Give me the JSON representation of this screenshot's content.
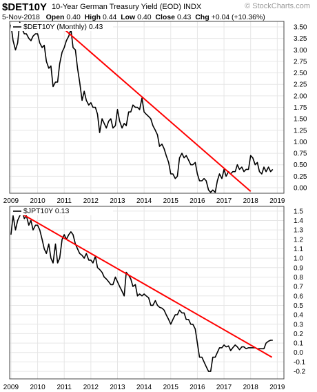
{
  "header": {
    "symbol": "$DET10Y",
    "title": "10-Year German Treasury Yield (EOD)",
    "exchange": "INDX",
    "watermark": "© StockCharts.com",
    "date": "5-Nov-2018",
    "open_label": "Open",
    "open": "0.40",
    "high_label": "High",
    "high": "0.44",
    "low_label": "Low",
    "low": "0.40",
    "close_label": "Close",
    "close": "0.43",
    "chg_label": "Chg",
    "chg": "+0.04 (+10.36%)"
  },
  "chart_data": [
    {
      "type": "line",
      "legend": "$DET10Y (Monthly) 0.43",
      "x_tick_labels": [
        "2009",
        "2010",
        "2011",
        "2012",
        "2013",
        "2014",
        "2015",
        "2016",
        "2017",
        "2018",
        "2019"
      ],
      "y_tick_labels": [
        "3.50",
        "3.25",
        "3.00",
        "2.75",
        "2.50",
        "2.25",
        "2.00",
        "1.75",
        "1.50",
        "1.25",
        "1.00",
        "0.75",
        "0.50",
        "0.25",
        "0.00"
      ],
      "ylim": [
        -0.12,
        3.62
      ],
      "xlim": [
        2008.95,
        2019.25
      ],
      "grid": true,
      "series": [
        {
          "color": "#000000",
          "x": [
            2009.0,
            2009.08,
            2009.17,
            2009.25,
            2009.33,
            2009.42,
            2009.5,
            2009.58,
            2009.67,
            2009.75,
            2009.83,
            2009.92,
            2010.0,
            2010.08,
            2010.17,
            2010.25,
            2010.33,
            2010.42,
            2010.5,
            2010.58,
            2010.67,
            2010.75,
            2010.83,
            2010.92,
            2011.0,
            2011.08,
            2011.17,
            2011.25,
            2011.33,
            2011.42,
            2011.5,
            2011.58,
            2011.67,
            2011.75,
            2011.83,
            2011.92,
            2012.0,
            2012.08,
            2012.17,
            2012.25,
            2012.33,
            2012.42,
            2012.5,
            2012.58,
            2012.67,
            2012.75,
            2012.83,
            2012.92,
            2013.0,
            2013.08,
            2013.17,
            2013.25,
            2013.33,
            2013.42,
            2013.5,
            2013.58,
            2013.67,
            2013.75,
            2013.83,
            2013.92,
            2014.0,
            2014.08,
            2014.17,
            2014.25,
            2014.33,
            2014.42,
            2014.5,
            2014.58,
            2014.67,
            2014.75,
            2014.83,
            2014.92,
            2015.0,
            2015.08,
            2015.17,
            2015.25,
            2015.33,
            2015.42,
            2015.5,
            2015.58,
            2015.67,
            2015.75,
            2015.83,
            2015.92,
            2016.0,
            2016.08,
            2016.17,
            2016.25,
            2016.33,
            2016.42,
            2016.5,
            2016.58,
            2016.67,
            2016.75,
            2016.83,
            2016.92,
            2017.0,
            2017.08,
            2017.17,
            2017.25,
            2017.33,
            2017.42,
            2017.5,
            2017.58,
            2017.67,
            2017.75,
            2017.83,
            2017.92,
            2018.0,
            2018.08,
            2018.17,
            2018.25,
            2018.33,
            2018.42,
            2018.5,
            2018.58,
            2018.67,
            2018.75,
            2018.83
          ],
          "values": [
            3.55,
            3.2,
            3.0,
            3.15,
            3.6,
            3.45,
            3.35,
            3.35,
            3.25,
            3.2,
            3.3,
            3.35,
            3.35,
            3.15,
            3.05,
            3.1,
            2.75,
            2.6,
            2.65,
            2.2,
            2.3,
            2.3,
            2.7,
            2.95,
            3.05,
            3.2,
            3.3,
            3.45,
            3.05,
            3.0,
            2.6,
            2.3,
            1.9,
            2.1,
            1.9,
            1.8,
            1.85,
            1.75,
            1.75,
            1.6,
            1.2,
            1.5,
            1.4,
            1.3,
            1.45,
            1.5,
            1.3,
            1.35,
            1.7,
            1.45,
            1.3,
            1.4,
            1.35,
            1.65,
            1.65,
            1.8,
            1.75,
            1.75,
            1.7,
            1.95,
            1.65,
            1.6,
            1.55,
            1.5,
            1.35,
            1.25,
            1.15,
            0.9,
            0.95,
            0.85,
            0.7,
            0.55,
            0.3,
            0.3,
            0.2,
            0.25,
            0.65,
            0.75,
            0.65,
            0.7,
            0.6,
            0.5,
            0.5,
            0.55,
            0.3,
            0.15,
            0.15,
            0.2,
            0.15,
            -0.05,
            -0.1,
            -0.05,
            -0.1,
            0.15,
            0.3,
            0.2,
            0.4,
            0.25,
            0.35,
            0.3,
            0.35,
            0.35,
            0.5,
            0.4,
            0.45,
            0.35,
            0.4,
            0.4,
            0.7,
            0.65,
            0.5,
            0.55,
            0.35,
            0.3,
            0.45,
            0.35,
            0.45,
            0.35,
            0.4
          ]
        },
        {
          "color": "#ff0000",
          "x": [
            2010.9,
            2018.0
          ],
          "values": [
            3.5,
            -0.08
          ]
        }
      ]
    },
    {
      "type": "line",
      "legend": "$JPT10Y 0.13",
      "x_tick_labels": [
        "2009",
        "2010",
        "2011",
        "2012",
        "2013",
        "2014",
        "2015",
        "2016",
        "2017",
        "2018",
        "2019"
      ],
      "y_tick_labels": [
        "1.5",
        "1.4",
        "1.3",
        "1.2",
        "1.1",
        "1.0",
        "0.9",
        "0.8",
        "0.7",
        "0.6",
        "0.5",
        "0.4",
        "0.3",
        "0.2",
        "0.1",
        "0.0",
        "-0.1",
        "-0.2"
      ],
      "ylim": [
        -0.28,
        1.55
      ],
      "xlim": [
        2008.95,
        2019.25
      ],
      "grid": true,
      "series": [
        {
          "color": "#000000",
          "x": [
            2009.0,
            2009.08,
            2009.17,
            2009.25,
            2009.33,
            2009.42,
            2009.5,
            2009.58,
            2009.67,
            2009.75,
            2009.83,
            2009.92,
            2010.0,
            2010.08,
            2010.17,
            2010.25,
            2010.33,
            2010.42,
            2010.5,
            2010.58,
            2010.67,
            2010.75,
            2010.83,
            2010.92,
            2011.0,
            2011.08,
            2011.17,
            2011.25,
            2011.33,
            2011.42,
            2011.5,
            2011.58,
            2011.67,
            2011.75,
            2011.83,
            2011.92,
            2012.0,
            2012.08,
            2012.17,
            2012.25,
            2012.33,
            2012.42,
            2012.5,
            2012.58,
            2012.67,
            2012.75,
            2012.83,
            2012.92,
            2013.0,
            2013.08,
            2013.17,
            2013.25,
            2013.33,
            2013.42,
            2013.5,
            2013.58,
            2013.67,
            2013.75,
            2013.83,
            2013.92,
            2014.0,
            2014.08,
            2014.17,
            2014.25,
            2014.33,
            2014.42,
            2014.5,
            2014.58,
            2014.67,
            2014.75,
            2014.83,
            2014.92,
            2015.0,
            2015.08,
            2015.17,
            2015.25,
            2015.33,
            2015.42,
            2015.5,
            2015.58,
            2015.67,
            2015.75,
            2015.83,
            2015.92,
            2016.0,
            2016.08,
            2016.17,
            2016.25,
            2016.33,
            2016.42,
            2016.5,
            2016.58,
            2016.67,
            2016.75,
            2016.83,
            2016.92,
            2017.0,
            2017.08,
            2017.17,
            2017.25,
            2017.33,
            2017.42,
            2017.5,
            2017.58,
            2017.67,
            2017.75,
            2017.83,
            2017.92,
            2018.0,
            2018.08,
            2018.17,
            2018.25,
            2018.33,
            2018.42,
            2018.5,
            2018.58,
            2018.67,
            2018.75,
            2018.83
          ],
          "values": [
            1.25,
            1.45,
            1.3,
            1.4,
            1.45,
            1.5,
            1.42,
            1.45,
            1.35,
            1.4,
            1.3,
            1.35,
            1.35,
            1.3,
            1.2,
            1.1,
            1.05,
            1.15,
            1.0,
            0.95,
            1.15,
            0.95,
            1.0,
            1.2,
            1.25,
            1.2,
            1.25,
            1.28,
            1.25,
            1.15,
            1.1,
            1.05,
            1.03,
            1.0,
            1.05,
            0.98,
            0.98,
            0.95,
            1.02,
            0.9,
            0.88,
            0.85,
            0.8,
            0.78,
            0.75,
            0.72,
            0.72,
            0.8,
            0.75,
            0.7,
            0.65,
            0.6,
            0.85,
            0.82,
            0.78,
            0.7,
            0.72,
            0.6,
            0.62,
            0.6,
            0.62,
            0.6,
            0.58,
            0.5,
            0.5,
            0.55,
            0.5,
            0.48,
            0.47,
            0.45,
            0.4,
            0.35,
            0.3,
            0.35,
            0.4,
            0.4,
            0.45,
            0.42,
            0.42,
            0.35,
            0.35,
            0.3,
            0.3,
            0.25,
            0.1,
            -0.05,
            -0.05,
            -0.1,
            -0.15,
            -0.2,
            -0.2,
            -0.05,
            -0.05,
            0.0,
            0.05,
            0.05,
            0.08,
            0.06,
            0.07,
            0.02,
            0.05,
            0.08,
            0.06,
            0.03,
            0.06,
            0.06,
            0.04,
            0.05,
            0.05,
            0.05,
            0.05,
            0.04,
            0.04,
            0.04,
            0.04,
            0.1,
            0.12,
            0.13,
            0.13
          ]
        },
        {
          "color": "#ff0000",
          "x": [
            2009.35,
            2018.8
          ],
          "values": [
            1.48,
            -0.05
          ]
        }
      ]
    }
  ]
}
